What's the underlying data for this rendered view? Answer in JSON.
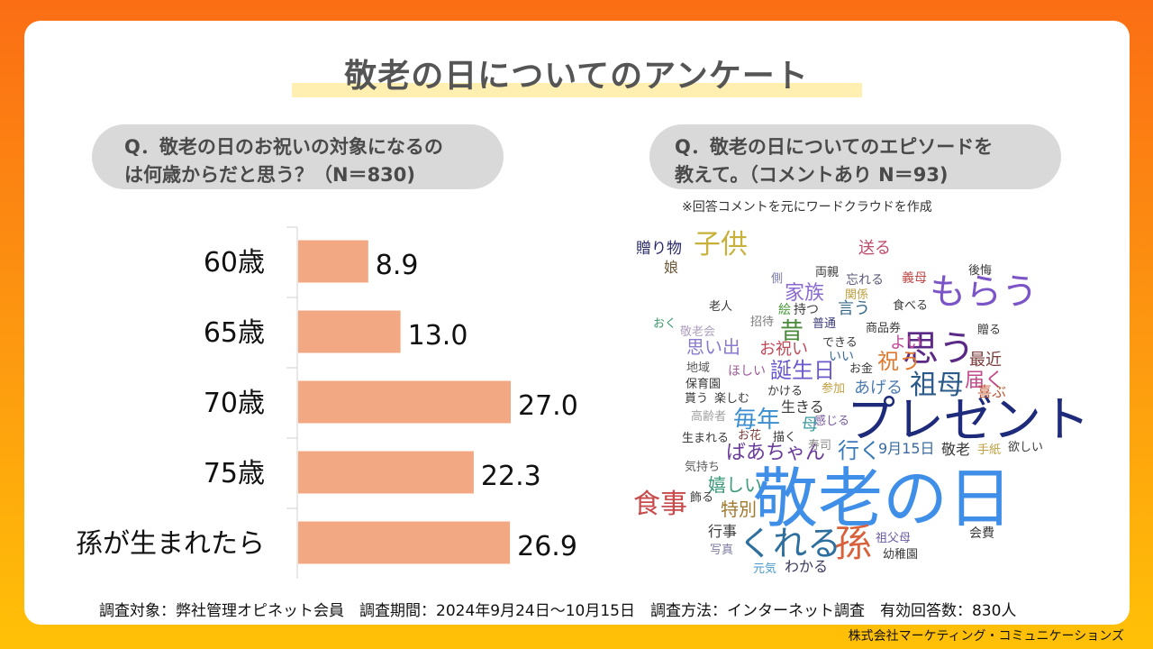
{
  "title": "敬老の日についてのアンケート",
  "question_left": {
    "line1": "Q．敬老の日のお祝いの対象になるの",
    "line2": "は何歳からだと思う？（N＝830)"
  },
  "question_right": {
    "line1": "Q．敬老の日についてのエピソードを",
    "line2": "教えて。（コメントあり N＝93)"
  },
  "note": "※回答コメントを元にワードクラウドを作成",
  "chart_data": {
    "type": "bar",
    "orientation": "horizontal",
    "categories": [
      "60歳",
      "65歳",
      "70歳",
      "75歳",
      "孫が生まれたら"
    ],
    "values": [
      8.9,
      13.0,
      27.0,
      22.3,
      26.9
    ],
    "value_labels": [
      "8.9",
      "13.0",
      "27.0",
      "22.3",
      "26.9"
    ],
    "xlim": [
      0,
      30
    ],
    "bar_color": "#f2a983"
  },
  "word_cloud": [
    {
      "text": "敬老の日",
      "color": "#3f8fe8"
    },
    {
      "text": "プレゼント",
      "color": "#1e2a7a"
    },
    {
      "text": "思う",
      "color": "#5b2a86"
    },
    {
      "text": "もらう",
      "color": "#7b55c7"
    },
    {
      "text": "孫",
      "color": "#d8603a"
    },
    {
      "text": "くれる",
      "color": "#2f6f9e"
    },
    {
      "text": "食事",
      "color": "#c84a4a"
    },
    {
      "text": "子供",
      "color": "#c7b13a"
    },
    {
      "text": "祖母",
      "color": "#2a5a8a"
    },
    {
      "text": "毎年",
      "color": "#3b8ed0"
    },
    {
      "text": "誕生日",
      "color": "#6a5acd"
    },
    {
      "text": "昔",
      "color": "#4a8a3a"
    },
    {
      "text": "家族",
      "color": "#8a6ad0"
    },
    {
      "text": "祝う",
      "color": "#e07a30"
    },
    {
      "text": "届く",
      "color": "#c04a8a"
    },
    {
      "text": "行く",
      "color": "#3a7ab8"
    },
    {
      "text": "嬉しい",
      "color": "#3a9a7a"
    },
    {
      "text": "特別",
      "color": "#a07a30"
    },
    {
      "text": "思い出",
      "color": "#8a7ad0"
    },
    {
      "text": "ばあちゃん",
      "color": "#6a3a9a"
    },
    {
      "text": "お祝い",
      "color": "#c04a5a"
    },
    {
      "text": "言う",
      "color": "#3a6a8a"
    },
    {
      "text": "あげる",
      "color": "#4a7ab0"
    },
    {
      "text": "よい",
      "color": "#c04a9a"
    },
    {
      "text": "最近",
      "color": "#7a3a3a"
    },
    {
      "text": "喜ぶ",
      "color": "#c05a3a"
    },
    {
      "text": "送る",
      "color": "#c04a6a"
    },
    {
      "text": "贈り物",
      "color": "#2a2a6a"
    },
    {
      "text": "娘",
      "color": "#6a5a3a"
    },
    {
      "text": "側",
      "color": "#7a7ab0"
    },
    {
      "text": "両親",
      "color": "#3a3a3a"
    },
    {
      "text": "忘れる",
      "color": "#5a5a7a"
    },
    {
      "text": "義母",
      "color": "#c04a4a"
    },
    {
      "text": "後悔",
      "color": "#3a3a3a"
    },
    {
      "text": "関係",
      "color": "#c0a040"
    },
    {
      "text": "食べる",
      "color": "#3a3a3a"
    },
    {
      "text": "老人",
      "color": "#3a3a3a"
    },
    {
      "text": "絵",
      "color": "#4a9a3a"
    },
    {
      "text": "持つ",
      "color": "#3a3a3a"
    },
    {
      "text": "おく",
      "color": "#3a9a6a"
    },
    {
      "text": "敬老会",
      "color": "#b0a0c0"
    },
    {
      "text": "招待",
      "color": "#7a7a7a"
    },
    {
      "text": "普通",
      "color": "#3a3a7a"
    },
    {
      "text": "商品券",
      "color": "#3a3a3a"
    },
    {
      "text": "贈る",
      "color": "#3a3a3a"
    },
    {
      "text": "できる",
      "color": "#3a3a3a"
    },
    {
      "text": "いい",
      "color": "#3a6a9a"
    },
    {
      "text": "お金",
      "color": "#3a3a3a"
    },
    {
      "text": "地域",
      "color": "#5a5a5a"
    },
    {
      "text": "ほしい",
      "color": "#a05a9a"
    },
    {
      "text": "保育園",
      "color": "#3a3a3a"
    },
    {
      "text": "かける",
      "color": "#3a3a3a"
    },
    {
      "text": "参加",
      "color": "#c0a040"
    },
    {
      "text": "貰う",
      "color": "#3a3a3a"
    },
    {
      "text": "楽しむ",
      "color": "#3a3a3a"
    },
    {
      "text": "生きる",
      "color": "#3a3a3a"
    },
    {
      "text": "高齢者",
      "color": "#a0a0a0"
    },
    {
      "text": "母",
      "color": "#3a9aa0"
    },
    {
      "text": "感じる",
      "color": "#7a5aa0"
    },
    {
      "text": "お花",
      "color": "#7a3a3a"
    },
    {
      "text": "描く",
      "color": "#3a3a3a"
    },
    {
      "text": "生まれる",
      "color": "#3a3a3a"
    },
    {
      "text": "寿司",
      "color": "#8a8a8a"
    },
    {
      "text": "9月15日",
      "color": "#3a6aa0"
    },
    {
      "text": "敬老",
      "color": "#3a3a3a"
    },
    {
      "text": "手紙",
      "color": "#c0a040"
    },
    {
      "text": "欲しい",
      "color": "#3a3a3a"
    },
    {
      "text": "気持ち",
      "color": "#5a5a5a"
    },
    {
      "text": "飾る",
      "color": "#3a3a3a"
    },
    {
      "text": "行事",
      "color": "#3a3a3a"
    },
    {
      "text": "写真",
      "color": "#7a7aa0"
    },
    {
      "text": "元気",
      "color": "#4a9ad0"
    },
    {
      "text": "わかる",
      "color": "#3a3a5a"
    },
    {
      "text": "祖父母",
      "color": "#6a5aa0"
    },
    {
      "text": "幼稚園",
      "color": "#3a3a3a"
    },
    {
      "text": "会費",
      "color": "#3a3a3a"
    }
  ],
  "footer": "調査対象：弊社管理オピネット会員　調査期間：2024年9月24日～10月15日　調査方法：インターネット調査　有効回答数：830人",
  "company": "株式会社マーケティング・コミュニケーションズ"
}
